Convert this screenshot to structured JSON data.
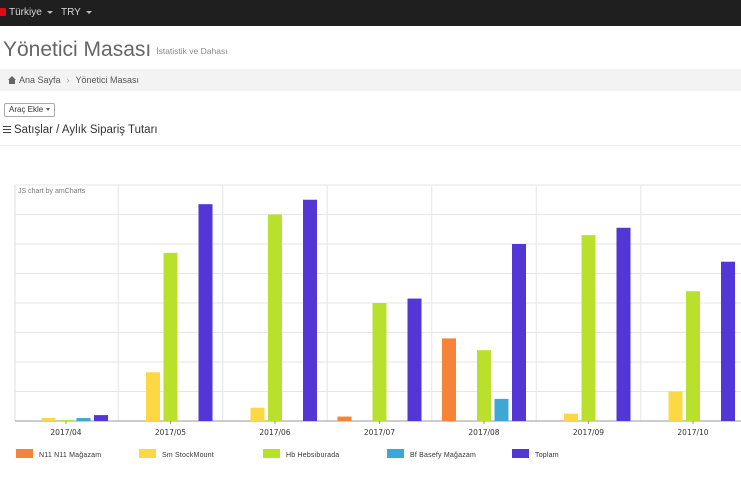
{
  "topbar": {
    "language": "Türkiye",
    "currency": "TRY"
  },
  "header": {
    "title": "Yönetici Masası",
    "subtitle": "İstatistik ve Dahası"
  },
  "breadcrumb": {
    "home": "Ana Sayfa",
    "current": "Yönetici Masası"
  },
  "toolbar": {
    "add_tool_label": "Araç Ekle"
  },
  "section": {
    "title": "Satışlar / Aylık Sipariş Tutarı"
  },
  "chart_credit": "JS chart by amCharts",
  "colors": {
    "n11": "#f5843a",
    "stockmount": "#fcd844",
    "hepsiburada": "#b8e02d",
    "basefy": "#3fa7d6",
    "toplam": "#5236d6"
  },
  "chart_data": {
    "type": "bar",
    "categories": [
      "2017/04",
      "2017/05",
      "2017/06",
      "2017/07",
      "2017/08",
      "2017/09",
      "2017/10"
    ],
    "series": [
      {
        "name": "N11  N11  Mağazam",
        "color": "#f5843a",
        "values": [
          0,
          0,
          0,
          1.5,
          28,
          0,
          0
        ]
      },
      {
        "name": "Sm  StockMount",
        "color": "#fcd844",
        "values": [
          1,
          16.5,
          4.5,
          0,
          0,
          2.5,
          10
        ]
      },
      {
        "name": "Hb  Hebsiburada",
        "color": "#b8e02d",
        "values": [
          0.3,
          57,
          70,
          40,
          24,
          63,
          44
        ]
      },
      {
        "name": "Bf  Basefy  Mağazam",
        "color": "#3fa7d6",
        "values": [
          1,
          0,
          0,
          0,
          7.5,
          0,
          0
        ]
      },
      {
        "name": "Toplam",
        "color": "#5236d6",
        "values": [
          2,
          73.5,
          75,
          41.5,
          60,
          65.5,
          54
        ]
      }
    ],
    "ylim": [
      0,
      80
    ],
    "grid": true,
    "legend_position": "bottom"
  }
}
